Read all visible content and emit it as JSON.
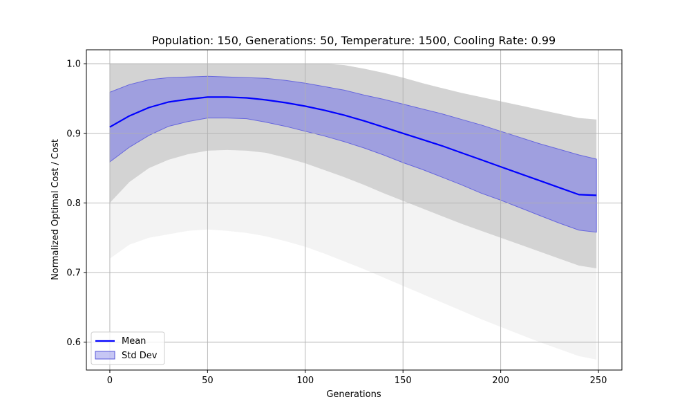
{
  "chart_data": {
    "type": "line",
    "title": "Population: 150, Generations: 50, Temperature: 1500, Cooling Rate: 0.99",
    "xlabel": "Generations",
    "ylabel": "Normalized Optimal Cost / Cost",
    "xlim": [
      -12,
      262
    ],
    "ylim": [
      0.56,
      1.02
    ],
    "xticks": [
      0,
      50,
      100,
      150,
      200,
      250
    ],
    "yticks": [
      0.6,
      0.7,
      0.8,
      0.9,
      1.0
    ],
    "xtick_labels": [
      "0",
      "50",
      "100",
      "150",
      "200",
      "250"
    ],
    "ytick_labels": [
      "0.6",
      "0.7",
      "0.8",
      "0.9",
      "1.0"
    ],
    "grid": true,
    "legend_position": "lower-left",
    "colors": {
      "mean": "#0000ff",
      "std_fill": "#8080e6",
      "runs": "#d3d3d3",
      "grid": "#b0b0b0"
    },
    "series": [
      {
        "name": "Mean",
        "kind": "line",
        "x": [
          0,
          10,
          20,
          30,
          40,
          50,
          60,
          70,
          80,
          90,
          100,
          110,
          120,
          130,
          140,
          150,
          160,
          170,
          180,
          190,
          200,
          210,
          220,
          230,
          240,
          249
        ],
        "values": [
          0.909,
          0.925,
          0.937,
          0.945,
          0.949,
          0.952,
          0.952,
          0.951,
          0.948,
          0.944,
          0.939,
          0.933,
          0.926,
          0.918,
          0.909,
          0.9,
          0.891,
          0.882,
          0.872,
          0.862,
          0.852,
          0.842,
          0.832,
          0.822,
          0.812,
          0.811
        ]
      },
      {
        "name": "Std Dev",
        "kind": "band",
        "x": [
          0,
          10,
          20,
          30,
          40,
          50,
          60,
          70,
          80,
          90,
          100,
          110,
          120,
          130,
          140,
          150,
          160,
          170,
          180,
          190,
          200,
          210,
          220,
          230,
          240,
          249
        ],
        "upper": [
          0.959,
          0.97,
          0.977,
          0.98,
          0.981,
          0.982,
          0.981,
          0.98,
          0.979,
          0.976,
          0.972,
          0.967,
          0.962,
          0.955,
          0.949,
          0.942,
          0.935,
          0.928,
          0.92,
          0.912,
          0.903,
          0.894,
          0.885,
          0.877,
          0.869,
          0.863
        ],
        "lower": [
          0.859,
          0.88,
          0.897,
          0.91,
          0.917,
          0.922,
          0.922,
          0.921,
          0.916,
          0.91,
          0.903,
          0.896,
          0.888,
          0.879,
          0.869,
          0.858,
          0.848,
          0.837,
          0.826,
          0.814,
          0.804,
          0.793,
          0.782,
          0.771,
          0.761,
          0.758
        ]
      },
      {
        "kind": "runs_envelope",
        "x": [
          0,
          10,
          20,
          30,
          40,
          50,
          60,
          70,
          80,
          90,
          100,
          110,
          120,
          130,
          140,
          150,
          160,
          170,
          180,
          190,
          200,
          210,
          220,
          230,
          240,
          249
        ],
        "upper": [
          1.0,
          1.0,
          1.0,
          1.0,
          1.0,
          1.0,
          1.0,
          1.0,
          1.0,
          1.0,
          1.0,
          1.0,
          0.998,
          0.993,
          0.987,
          0.98,
          0.972,
          0.965,
          0.958,
          0.952,
          0.946,
          0.94,
          0.934,
          0.928,
          0.922,
          0.92
        ],
        "lower": [
          0.8,
          0.83,
          0.85,
          0.862,
          0.87,
          0.875,
          0.876,
          0.875,
          0.872,
          0.865,
          0.857,
          0.847,
          0.837,
          0.826,
          0.814,
          0.803,
          0.792,
          0.781,
          0.77,
          0.76,
          0.75,
          0.74,
          0.73,
          0.72,
          0.71,
          0.706
        ],
        "faint_lower": [
          0.72,
          0.74,
          0.75,
          0.755,
          0.76,
          0.762,
          0.76,
          0.757,
          0.752,
          0.745,
          0.737,
          0.727,
          0.716,
          0.705,
          0.693,
          0.681,
          0.669,
          0.657,
          0.645,
          0.633,
          0.622,
          0.611,
          0.6,
          0.59,
          0.58,
          0.575
        ]
      }
    ]
  }
}
